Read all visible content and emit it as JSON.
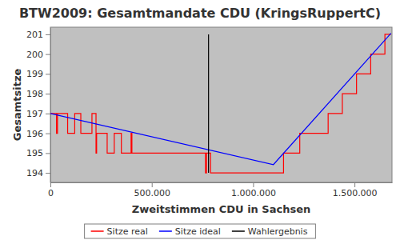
{
  "chart_data": {
    "type": "line",
    "title": "BTW2009: Gesamtmandate CDU (KringsRuppertC)",
    "x_label": "Zweitstimmen CDU in Sachsen",
    "y_label": "Gesamtsitze",
    "xlim": [
      0,
      1685000
    ],
    "ylim": [
      193.52,
      201.36
    ],
    "xticks": [
      0,
      {
        "value": 500000,
        "label": "500.000"
      },
      {
        "value": 1000000,
        "label": "1.000.000"
      },
      {
        "value": 1500000,
        "label": "1.500.000"
      }
    ],
    "yticks": [
      194,
      195,
      196,
      197,
      198,
      199,
      200,
      201
    ],
    "grid": false,
    "legend": "bottom",
    "series": [
      {
        "name": "Sitze real",
        "color": "#ff0000",
        "x": [
          0,
          30000,
          30000,
          35000,
          35000,
          85000,
          85000,
          120000,
          120000,
          150000,
          150000,
          205000,
          205000,
          225000,
          225000,
          228000,
          228000,
          280000,
          280000,
          315000,
          315000,
          350000,
          350000,
          398000,
          398000,
          402000,
          402000,
          765000,
          765000,
          770000,
          770000,
          790000,
          790000,
          1150000,
          1150000,
          1230000,
          1230000,
          1370000,
          1370000,
          1440000,
          1440000,
          1510000,
          1510000,
          1580000,
          1580000,
          1650000,
          1650000,
          1680000
        ],
        "values": [
          197,
          197,
          196,
          196,
          197,
          197,
          196,
          196,
          197,
          197,
          196,
          196,
          197,
          197,
          195,
          195,
          196,
          196,
          195,
          195,
          196,
          196,
          195,
          195,
          196,
          196,
          195,
          195,
          194,
          194,
          195,
          195,
          194,
          194,
          195,
          195,
          196,
          196,
          197,
          197,
          198,
          198,
          199,
          199,
          200,
          200,
          201,
          201
        ]
      },
      {
        "name": "Sitze ideal",
        "color": "#0000ff",
        "x": [
          0,
          1100000,
          1680000
        ],
        "values": [
          197.0,
          194.42,
          201.05
        ]
      },
      {
        "name": "Wahlergebnis",
        "color": "#000000",
        "x": [
          780000,
          780000
        ],
        "values": [
          194,
          201
        ]
      }
    ]
  }
}
